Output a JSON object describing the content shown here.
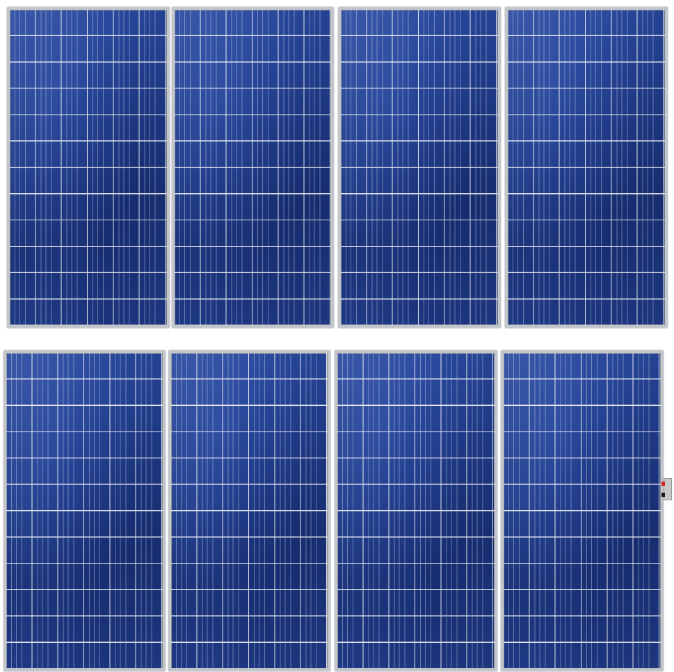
{
  "scene": {
    "subject": "solar-panel-array",
    "rows": 2,
    "panels_per_row": 4,
    "cell_grid": {
      "columns": 6,
      "rows": 12
    }
  },
  "colors": {
    "background": "#ffffff",
    "panel_blue": "#203c8a",
    "frame_silver": "#c3c7cc",
    "cell_gap": "#e8ecf4",
    "connector_positive": "#d02020",
    "connector_negative": "#1a1a1a"
  },
  "panels": [
    {
      "name": "panel-row1-1"
    },
    {
      "name": "panel-row1-2"
    },
    {
      "name": "panel-row1-3"
    },
    {
      "name": "panel-row1-4"
    },
    {
      "name": "panel-row2-1"
    },
    {
      "name": "panel-row2-2"
    },
    {
      "name": "panel-row2-3"
    },
    {
      "name": "panel-row2-4"
    }
  ]
}
